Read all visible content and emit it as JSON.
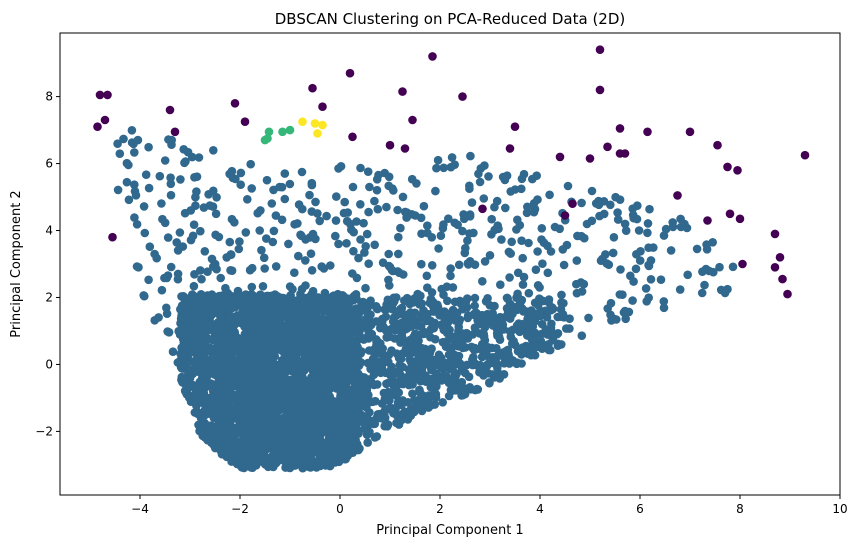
{
  "chart_data": {
    "type": "scatter",
    "title": "DBSCAN Clustering on PCA-Reduced Data (2D)",
    "xlabel": "Principal Component 1",
    "ylabel": "Principal Component 2",
    "xlim": [
      -5.6,
      10.0
    ],
    "ylim": [
      -3.9,
      9.9
    ],
    "xticks": [
      -4,
      -2,
      0,
      2,
      4,
      6,
      8,
      10
    ],
    "yticks": [
      -2,
      0,
      2,
      4,
      6,
      8
    ],
    "xtick_labels": [
      "−4",
      "−2",
      "0",
      "2",
      "4",
      "6",
      "8",
      "10"
    ],
    "ytick_labels": [
      "−2",
      "0",
      "2",
      "4",
      "6",
      "8"
    ],
    "grid": false,
    "legend": "none",
    "colors": {
      "noise": "#440154",
      "cluster_0": "#31688e",
      "cluster_1": "#35b779",
      "cluster_2": "#fde725"
    },
    "series": [
      {
        "cluster": "noise",
        "points": [
          [
            -4.85,
            7.1
          ],
          [
            -4.8,
            8.05
          ],
          [
            -4.65,
            8.05
          ],
          [
            -4.7,
            7.3
          ],
          [
            -4.55,
            3.8
          ],
          [
            -3.4,
            7.6
          ],
          [
            -3.3,
            6.95
          ],
          [
            -2.1,
            7.8
          ],
          [
            -1.9,
            7.25
          ],
          [
            -0.55,
            8.25
          ],
          [
            -0.35,
            7.7
          ],
          [
            0.2,
            8.7
          ],
          [
            0.25,
            6.8
          ],
          [
            1.0,
            6.55
          ],
          [
            1.25,
            8.15
          ],
          [
            1.3,
            6.45
          ],
          [
            1.45,
            7.3
          ],
          [
            1.85,
            9.2
          ],
          [
            2.45,
            8.0
          ],
          [
            2.85,
            4.65
          ],
          [
            3.4,
            6.45
          ],
          [
            3.5,
            7.1
          ],
          [
            4.4,
            6.2
          ],
          [
            4.5,
            4.45
          ],
          [
            4.65,
            4.8
          ],
          [
            5.0,
            6.15
          ],
          [
            5.2,
            9.4
          ],
          [
            5.2,
            8.2
          ],
          [
            5.35,
            6.5
          ],
          [
            5.6,
            7.05
          ],
          [
            5.6,
            6.3
          ],
          [
            5.7,
            6.3
          ],
          [
            6.15,
            6.95
          ],
          [
            6.75,
            5.05
          ],
          [
            7.0,
            6.95
          ],
          [
            7.35,
            4.3
          ],
          [
            7.55,
            6.55
          ],
          [
            7.75,
            5.9
          ],
          [
            7.8,
            4.5
          ],
          [
            7.95,
            5.8
          ],
          [
            8.0,
            4.35
          ],
          [
            8.05,
            3.0
          ],
          [
            8.7,
            3.9
          ],
          [
            8.7,
            2.9
          ],
          [
            8.8,
            3.2
          ],
          [
            8.85,
            2.55
          ],
          [
            8.95,
            2.1
          ],
          [
            9.3,
            6.25
          ]
        ]
      },
      {
        "cluster": "cluster_1",
        "points": [
          [
            -1.5,
            6.7
          ],
          [
            -1.45,
            6.75
          ],
          [
            -1.42,
            6.95
          ],
          [
            -1.15,
            6.95
          ],
          [
            -1.0,
            7.0
          ]
        ]
      },
      {
        "cluster": "cluster_2",
        "points": [
          [
            -0.75,
            7.25
          ],
          [
            -0.5,
            7.2
          ],
          [
            -0.45,
            6.9
          ],
          [
            -0.35,
            7.15
          ]
        ]
      },
      {
        "cluster": "cluster_0",
        "points_note_generated": true,
        "points": [],
        "region_outline": [
          [
            -4.3,
            7.0
          ],
          [
            -3.6,
            7.0
          ],
          [
            -2.5,
            6.4
          ],
          [
            -1.0,
            6.3
          ],
          [
            1.0,
            6.0
          ],
          [
            2.5,
            6.3
          ],
          [
            3.5,
            6.0
          ],
          [
            5.0,
            5.2
          ],
          [
            6.5,
            4.6
          ],
          [
            7.5,
            4.2
          ],
          [
            8.0,
            2.5
          ],
          [
            8.0,
            2.0
          ],
          [
            7.2,
            1.9
          ],
          [
            6.0,
            1.5
          ],
          [
            5.0,
            0.9
          ],
          [
            4.0,
            0.3
          ],
          [
            3.0,
            -0.6
          ],
          [
            2.0,
            -1.2
          ],
          [
            0.8,
            -2.1
          ],
          [
            0.0,
            -3.0
          ],
          [
            -1.0,
            -3.2
          ],
          [
            -2.0,
            -3.1
          ],
          [
            -2.8,
            -2.2
          ],
          [
            -3.0,
            -1.2
          ],
          [
            -3.3,
            0.0
          ],
          [
            -4.0,
            2.0
          ],
          [
            -4.2,
            4.0
          ],
          [
            -4.5,
            5.5
          ],
          [
            -4.5,
            6.5
          ]
        ]
      }
    ]
  }
}
